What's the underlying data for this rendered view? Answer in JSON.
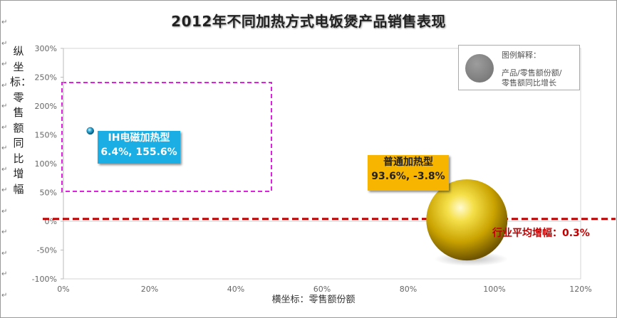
{
  "chart_data": {
    "type": "bubble",
    "title": "2012年不同加热方式电饭煲产品销售表现",
    "xlabel": "横坐标：零售额份额",
    "ylabel": "纵坐标：零售额同比增幅",
    "xlim": [
      0,
      120
    ],
    "ylim": [
      -100,
      300
    ],
    "x_ticks": [
      "0%",
      "20%",
      "40%",
      "60%",
      "80%",
      "100%",
      "120%"
    ],
    "y_ticks": [
      "300%",
      "250%",
      "200%",
      "150%",
      "100%",
      "50%",
      "0%",
      "-50%",
      "-100%"
    ],
    "grid": false,
    "legend_position": "top-right",
    "points": [
      {
        "name": "IH电磁加热型",
        "value_label": "6.4%, 155.6%",
        "x": 6.4,
        "y": 155.6,
        "color": "#1aaee4"
      },
      {
        "name": "普通加热型",
        "value_label": "93.6%, -3.8%",
        "x": 93.6,
        "y": -3.8,
        "color": "#f2c200"
      }
    ],
    "reference_line": {
      "label": "行业平均增幅：0.3%",
      "y": 0.3,
      "color": "#c00000"
    }
  },
  "legend": {
    "title": "图例解释：",
    "line1": "产品/零售额份额/",
    "line2": "零售额同比增长"
  },
  "margin_marks": [
    "↵",
    "↵",
    "↵",
    "↵",
    "↵",
    "↵",
    "↵",
    "↵",
    "↵",
    "↵",
    "↵",
    "↵",
    "↵",
    "↵"
  ]
}
